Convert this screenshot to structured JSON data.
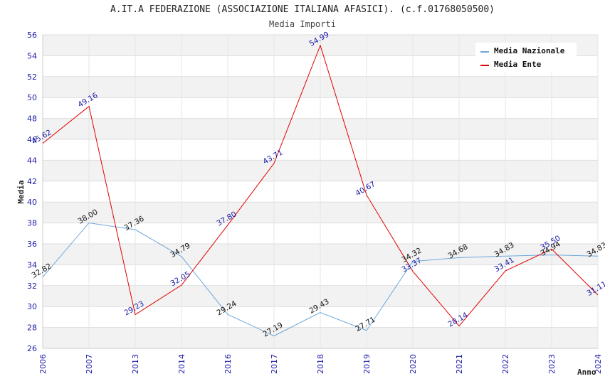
{
  "chart_data": {
    "type": "line",
    "title": "A.IT.A FEDERAZIONE (ASSOCIAZIONE ITALIANA AFASICI). (c.f.01768050500)",
    "subtitle": "Media Importi",
    "xlabel": "Anno",
    "ylabel": "Media",
    "ylim": [
      26,
      56
    ],
    "ytick_step": 2,
    "grid": true,
    "legend_position": "top-right",
    "x": [
      "2006",
      "2007",
      "2013",
      "2014",
      "2016",
      "2017",
      "2018",
      "2019",
      "2020",
      "2021",
      "2022",
      "2023",
      "2024"
    ],
    "series": [
      {
        "name": "Media Nazionale",
        "color": "#6fa8dc",
        "label_color": "#111111",
        "values": [
          32.82,
          38.0,
          37.36,
          34.79,
          29.24,
          27.19,
          29.43,
          27.71,
          34.32,
          34.68,
          34.83,
          34.94,
          34.83
        ]
      },
      {
        "name": "Media Ente",
        "color": "#e00000",
        "label_color": "#1a1aa6",
        "values": [
          45.62,
          49.16,
          29.23,
          32.05,
          37.8,
          43.71,
          54.99,
          40.67,
          33.37,
          28.14,
          33.41,
          35.5,
          31.11
        ]
      }
    ]
  }
}
